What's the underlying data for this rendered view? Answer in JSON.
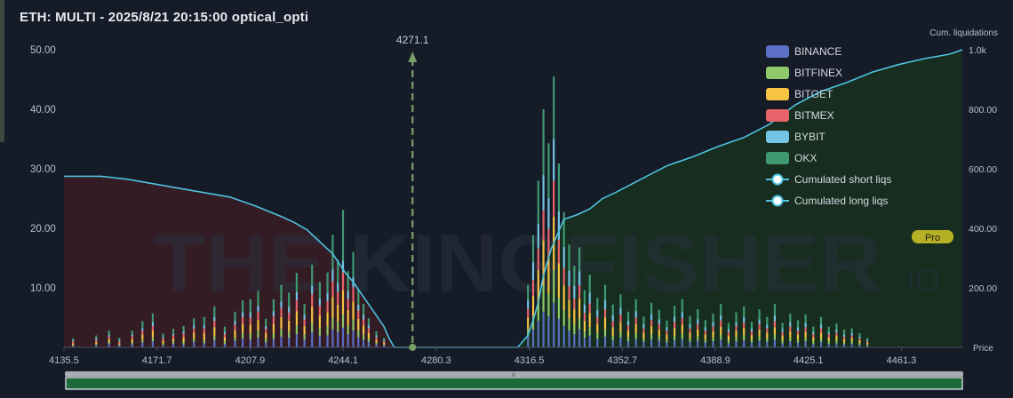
{
  "title": "ETH: MULTI - 2025/8/21 20:15:00 optical_opti",
  "watermark": {
    "main": "THE  KINGFISHER",
    "suffix": ".IO"
  },
  "badge": "Pro",
  "axis_titles": {
    "right_top": "Cum. liquidations",
    "right_bottom": "Price"
  },
  "colors": {
    "BINANCE": "#5b6fc4",
    "BITFINEX": "#8fc96a",
    "BITGET": "#f6c343",
    "BITMEX": "#e8636a",
    "BYBIT": "#74c4e6",
    "OKX": "#3f9a72",
    "cum_line": "#4fc3e0",
    "marker": "#7aa06a",
    "short_fill": "#3a1c24",
    "long_fill": "#16301f"
  },
  "chart_data": {
    "type": "bar",
    "stacked": true,
    "x_ticks": [
      "4135.5",
      "4171.7",
      "4207.9",
      "4244.1",
      "4280.3",
      "4316.5",
      "4352.7",
      "4388.9",
      "4425.1",
      "4461.3"
    ],
    "xlim": [
      4135.5,
      4485
    ],
    "ylim": [
      0,
      50
    ],
    "y_ticks": [
      "50.00",
      "40.00",
      "30.00",
      "20.00",
      "10.00"
    ],
    "y2lim": [
      0,
      1000
    ],
    "y2_ticks": [
      "1.0k",
      "800.00",
      "600.00",
      "400.00",
      "200.00"
    ],
    "current_price": {
      "label": "4271.1",
      "value": 4271.1
    },
    "series_names": [
      "BINANCE",
      "BITFINEX",
      "BITGET",
      "BITMEX",
      "BYBIT",
      "OKX"
    ],
    "legend": [
      "BINANCE",
      "BITFINEX",
      "BITGET",
      "BITMEX",
      "BYBIT",
      "OKX",
      "Cumulated short liqs",
      "Cumulated long liqs"
    ],
    "legend_position": "top-right",
    "cumulated_long_liqs": [
      [
        4135.5,
        575
      ],
      [
        4150,
        575
      ],
      [
        4160,
        565
      ],
      [
        4170,
        550
      ],
      [
        4180,
        535
      ],
      [
        4190,
        520
      ],
      [
        4200,
        505
      ],
      [
        4210,
        475
      ],
      [
        4220,
        440
      ],
      [
        4225,
        420
      ],
      [
        4230,
        395
      ],
      [
        4235,
        355
      ],
      [
        4240,
        315
      ],
      [
        4245,
        250
      ],
      [
        4248,
        220
      ],
      [
        4252,
        170
      ],
      [
        4256,
        120
      ],
      [
        4260,
        70
      ],
      [
        4262,
        30
      ],
      [
        4264,
        0
      ],
      [
        4271.1,
        0
      ]
    ],
    "cumulated_short_liqs": [
      [
        4271.1,
        0
      ],
      [
        4312,
        0
      ],
      [
        4316,
        40
      ],
      [
        4318,
        90
      ],
      [
        4320,
        150
      ],
      [
        4322,
        240
      ],
      [
        4325,
        330
      ],
      [
        4330,
        430
      ],
      [
        4335,
        445
      ],
      [
        4340,
        465
      ],
      [
        4345,
        500
      ],
      [
        4350,
        520
      ],
      [
        4360,
        565
      ],
      [
        4370,
        610
      ],
      [
        4380,
        640
      ],
      [
        4390,
        675
      ],
      [
        4400,
        705
      ],
      [
        4410,
        750
      ],
      [
        4420,
        815
      ],
      [
        4430,
        860
      ],
      [
        4440,
        890
      ],
      [
        4450,
        925
      ],
      [
        4460,
        950
      ],
      [
        4470,
        970
      ],
      [
        4480,
        985
      ],
      [
        4485,
        1000
      ]
    ],
    "bars": [
      {
        "x": 4139,
        "v": [
          0.2,
          0.2,
          0.3,
          0.3,
          0.2,
          0.3
        ]
      },
      {
        "x": 4148,
        "v": [
          0.4,
          0.2,
          0.3,
          0.3,
          0.3,
          0.5
        ]
      },
      {
        "x": 4153,
        "v": [
          0.6,
          0.3,
          0.5,
          0.4,
          0.3,
          0.7
        ]
      },
      {
        "x": 4157,
        "v": [
          0.3,
          0.2,
          0.2,
          0.3,
          0.2,
          0.4
        ]
      },
      {
        "x": 4162,
        "v": [
          0.5,
          0.3,
          0.6,
          0.5,
          0.3,
          0.6
        ]
      },
      {
        "x": 4166,
        "v": [
          0.8,
          0.5,
          0.9,
          0.6,
          0.4,
          1.2
        ]
      },
      {
        "x": 4170,
        "v": [
          1.0,
          0.7,
          1.1,
          0.8,
          0.6,
          1.5
        ]
      },
      {
        "x": 4174,
        "v": [
          0.4,
          0.3,
          0.5,
          0.3,
          0.2,
          0.6
        ]
      },
      {
        "x": 4178,
        "v": [
          0.6,
          0.4,
          0.5,
          0.5,
          0.3,
          0.8
        ]
      },
      {
        "x": 4182,
        "v": [
          0.5,
          0.4,
          0.8,
          0.6,
          0.4,
          0.9
        ]
      },
      {
        "x": 4186,
        "v": [
          0.9,
          0.6,
          1.0,
          0.7,
          0.5,
          1.2
        ]
      },
      {
        "x": 4190,
        "v": [
          0.7,
          0.5,
          1.2,
          0.8,
          0.5,
          1.4
        ]
      },
      {
        "x": 4194,
        "v": [
          1.2,
          0.8,
          1.4,
          1.0,
          0.7,
          1.8
        ]
      },
      {
        "x": 4198,
        "v": [
          0.6,
          0.4,
          0.7,
          0.5,
          0.4,
          0.9
        ]
      },
      {
        "x": 4202,
        "v": [
          1.1,
          0.6,
          1.2,
          0.9,
          0.7,
          1.5
        ]
      },
      {
        "x": 4205,
        "v": [
          1.5,
          0.9,
          1.6,
          1.1,
          0.8,
          2.0
        ]
      },
      {
        "x": 4208,
        "v": [
          1.3,
          1.0,
          1.5,
          1.2,
          0.9,
          2.2
        ]
      },
      {
        "x": 4211,
        "v": [
          1.6,
          1.2,
          1.8,
          1.4,
          1.0,
          2.5
        ]
      },
      {
        "x": 4214,
        "v": [
          0.8,
          0.6,
          1.0,
          0.7,
          0.5,
          1.2
        ]
      },
      {
        "x": 4217,
        "v": [
          1.4,
          1.0,
          1.6,
          1.2,
          0.9,
          2.0
        ]
      },
      {
        "x": 4220,
        "v": [
          1.8,
          1.3,
          2.0,
          1.5,
          1.1,
          2.8
        ]
      },
      {
        "x": 4223,
        "v": [
          1.6,
          1.0,
          1.9,
          1.3,
          1.0,
          2.4
        ]
      },
      {
        "x": 4226,
        "v": [
          2.2,
          1.5,
          2.4,
          1.8,
          1.4,
          3.2
        ]
      },
      {
        "x": 4229,
        "v": [
          1.3,
          0.9,
          1.4,
          1.1,
          0.8,
          1.8
        ]
      },
      {
        "x": 4232,
        "v": [
          2.5,
          1.6,
          2.8,
          2.0,
          1.5,
          3.5
        ]
      },
      {
        "x": 4235,
        "v": [
          1.9,
          1.3,
          2.2,
          1.6,
          1.2,
          2.8
        ]
      },
      {
        "x": 4238,
        "v": [
          2.0,
          1.6,
          2.3,
          1.9,
          1.4,
          3.4
        ]
      },
      {
        "x": 4240,
        "v": [
          3.0,
          2.0,
          3.5,
          2.6,
          2.0,
          5.8
        ]
      },
      {
        "x": 4242,
        "v": [
          2.6,
          1.7,
          2.9,
          2.1,
          1.6,
          3.8
        ]
      },
      {
        "x": 4244,
        "v": [
          3.3,
          2.2,
          4.1,
          3.0,
          2.0,
          8.5
        ]
      },
      {
        "x": 4246,
        "v": [
          2.2,
          1.5,
          2.6,
          1.8,
          1.4,
          3.3
        ]
      },
      {
        "x": 4248,
        "v": [
          2.8,
          1.9,
          3.0,
          2.4,
          1.7,
          4.2
        ]
      },
      {
        "x": 4250,
        "v": [
          1.7,
          1.2,
          1.9,
          1.4,
          1.0,
          2.5
        ]
      },
      {
        "x": 4252,
        "v": [
          1.3,
          0.9,
          1.5,
          1.0,
          0.8,
          1.8
        ]
      },
      {
        "x": 4254,
        "v": [
          0.9,
          0.6,
          1.0,
          0.7,
          0.5,
          1.2
        ]
      },
      {
        "x": 4257,
        "v": [
          0.5,
          0.3,
          0.5,
          0.4,
          0.3,
          0.7
        ]
      },
      {
        "x": 4260,
        "v": [
          0.3,
          0.2,
          0.3,
          0.2,
          0.2,
          0.4
        ]
      },
      {
        "x": 4316,
        "v": [
          1.8,
          1.2,
          2.0,
          1.5,
          1.5,
          2.5
        ]
      },
      {
        "x": 4318,
        "v": [
          3.0,
          2.2,
          3.5,
          2.6,
          3.0,
          4.5
        ]
      },
      {
        "x": 4320,
        "v": [
          4.5,
          3.0,
          5.5,
          3.6,
          4.2,
          7.2
        ]
      },
      {
        "x": 4322,
        "v": [
          6.0,
          4.5,
          7.5,
          5.0,
          6.0,
          11.0
        ]
      },
      {
        "x": 4324,
        "v": [
          5.2,
          3.8,
          6.5,
          4.4,
          5.2,
          9.2
        ]
      },
      {
        "x": 4326,
        "v": [
          7.5,
          5.5,
          9.0,
          6.0,
          7.0,
          10.5
        ]
      },
      {
        "x": 4328,
        "v": [
          4.8,
          3.5,
          5.8,
          4.0,
          4.8,
          8.0
        ]
      },
      {
        "x": 4330,
        "v": [
          3.6,
          2.6,
          4.2,
          3.0,
          3.5,
          5.8
        ]
      },
      {
        "x": 4332,
        "v": [
          2.8,
          2.0,
          3.2,
          2.3,
          2.6,
          4.4
        ]
      },
      {
        "x": 4334,
        "v": [
          2.2,
          1.6,
          2.6,
          1.8,
          2.1,
          3.4
        ]
      },
      {
        "x": 4336,
        "v": [
          3.0,
          1.8,
          3.4,
          2.2,
          2.4,
          4.0
        ]
      },
      {
        "x": 4338,
        "v": [
          1.6,
          1.1,
          1.8,
          1.3,
          1.4,
          2.4
        ]
      },
      {
        "x": 4340,
        "v": [
          2.0,
          1.4,
          2.4,
          1.6,
          1.8,
          3.0
        ]
      },
      {
        "x": 4343,
        "v": [
          1.4,
          1.0,
          1.6,
          1.1,
          1.2,
          2.0
        ]
      },
      {
        "x": 4346,
        "v": [
          1.8,
          1.2,
          2.0,
          1.4,
          1.5,
          2.6
        ]
      },
      {
        "x": 4349,
        "v": [
          1.2,
          0.8,
          1.4,
          1.0,
          1.0,
          1.8
        ]
      },
      {
        "x": 4352,
        "v": [
          1.6,
          1.0,
          1.7,
          1.2,
          1.2,
          2.2
        ]
      },
      {
        "x": 4355,
        "v": [
          1.0,
          0.7,
          1.2,
          0.8,
          0.8,
          1.5
        ]
      },
      {
        "x": 4358,
        "v": [
          1.4,
          0.9,
          1.6,
          1.1,
          1.1,
          2.0
        ]
      },
      {
        "x": 4361,
        "v": [
          0.9,
          0.6,
          1.0,
          0.7,
          0.7,
          1.3
        ]
      },
      {
        "x": 4364,
        "v": [
          1.3,
          0.9,
          1.4,
          1.0,
          1.0,
          1.9
        ]
      },
      {
        "x": 4367,
        "v": [
          1.1,
          0.7,
          1.2,
          0.9,
          0.8,
          1.6
        ]
      },
      {
        "x": 4370,
        "v": [
          0.8,
          0.5,
          0.9,
          0.6,
          0.6,
          1.1
        ]
      },
      {
        "x": 4373,
        "v": [
          1.2,
          0.8,
          1.3,
          1.0,
          0.9,
          1.8
        ]
      },
      {
        "x": 4376,
        "v": [
          1.4,
          0.9,
          1.5,
          1.1,
          1.0,
          2.2
        ]
      },
      {
        "x": 4379,
        "v": [
          0.9,
          0.6,
          1.0,
          0.7,
          0.7,
          1.4
        ]
      },
      {
        "x": 4382,
        "v": [
          1.1,
          0.7,
          1.2,
          0.9,
          0.8,
          1.7
        ]
      },
      {
        "x": 4385,
        "v": [
          0.8,
          0.5,
          0.9,
          0.6,
          0.6,
          1.2
        ]
      },
      {
        "x": 4388,
        "v": [
          1.0,
          0.6,
          1.1,
          0.8,
          0.7,
          1.5
        ]
      },
      {
        "x": 4391,
        "v": [
          1.3,
          0.8,
          1.4,
          1.0,
          0.9,
          1.9
        ]
      },
      {
        "x": 4394,
        "v": [
          0.7,
          0.5,
          0.8,
          0.6,
          0.5,
          1.0
        ]
      },
      {
        "x": 4397,
        "v": [
          1.0,
          0.7,
          1.1,
          0.8,
          0.7,
          1.6
        ]
      },
      {
        "x": 4400,
        "v": [
          1.2,
          0.8,
          1.3,
          0.9,
          0.8,
          1.9
        ]
      },
      {
        "x": 4403,
        "v": [
          0.8,
          0.5,
          0.8,
          0.6,
          0.5,
          1.1
        ]
      },
      {
        "x": 4406,
        "v": [
          1.1,
          0.7,
          1.2,
          0.9,
          0.8,
          1.7
        ]
      },
      {
        "x": 4409,
        "v": [
          0.9,
          0.6,
          1.0,
          0.7,
          0.6,
          1.3
        ]
      },
      {
        "x": 4412,
        "v": [
          1.3,
          0.8,
          1.3,
          1.0,
          0.9,
          2.0
        ]
      },
      {
        "x": 4415,
        "v": [
          0.7,
          0.5,
          0.8,
          0.6,
          0.5,
          1.0
        ]
      },
      {
        "x": 4418,
        "v": [
          1.0,
          0.6,
          1.1,
          0.8,
          0.7,
          1.5
        ]
      },
      {
        "x": 4421,
        "v": [
          0.8,
          0.5,
          0.9,
          0.6,
          0.6,
          1.2
        ]
      },
      {
        "x": 4424,
        "v": [
          1.0,
          0.6,
          1.0,
          0.8,
          0.7,
          1.4
        ]
      },
      {
        "x": 4427,
        "v": [
          0.6,
          0.4,
          0.7,
          0.5,
          0.4,
          0.9
        ]
      },
      {
        "x": 4430,
        "v": [
          0.9,
          0.6,
          1.0,
          0.7,
          0.6,
          1.3
        ]
      },
      {
        "x": 4433,
        "v": [
          0.6,
          0.4,
          0.7,
          0.5,
          0.4,
          0.9
        ]
      },
      {
        "x": 4436,
        "v": [
          0.7,
          0.5,
          0.8,
          0.5,
          0.5,
          1.0
        ]
      },
      {
        "x": 4439,
        "v": [
          0.5,
          0.3,
          0.6,
          0.4,
          0.4,
          0.8
        ]
      },
      {
        "x": 4442,
        "v": [
          0.6,
          0.4,
          0.6,
          0.4,
          0.4,
          0.8
        ]
      },
      {
        "x": 4445,
        "v": [
          0.4,
          0.3,
          0.5,
          0.3,
          0.3,
          0.6
        ]
      },
      {
        "x": 4448,
        "v": [
          0.3,
          0.2,
          0.3,
          0.2,
          0.2,
          0.4
        ]
      }
    ]
  }
}
